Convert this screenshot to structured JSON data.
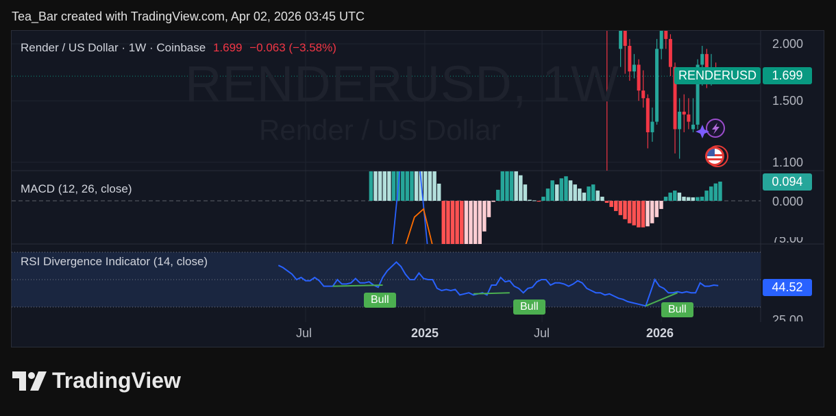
{
  "header": {
    "title": "Tea_Bar created with TradingView.com, Apr 02, 2026 03:45 UTC"
  },
  "legend": {
    "symbol": "Render / US Dollar · 1W · Coinbase",
    "price": "1.699",
    "change": "−0.063 (−3.58%)",
    "macd": "MACD (12, 26, close)",
    "rsi": "RSI Divergence Indicator (14, close)"
  },
  "watermark": {
    "ticker": "RENDERUSD, 1W",
    "name": "Render / US Dollar"
  },
  "price_axis": {
    "labels": [
      "2.000",
      "1.500",
      "1.100"
    ],
    "symbol_tag": "RENDERUSD",
    "price_tag": "1.699"
  },
  "macd_axis": {
    "value_tag": "0.094",
    "zero": "0.000"
  },
  "rsi_axis": {
    "top": "75.00",
    "bottom": "25.00",
    "value_tag": "44.52"
  },
  "time_axis": [
    "Jul",
    "2025",
    "Jul",
    "2026"
  ],
  "logo": {
    "text": "TradingView"
  },
  "colors": {
    "up": "#26a69a",
    "down": "#f23645",
    "rsi": "#2962ff",
    "macd": "#2962ff",
    "signal": "#ff6d00",
    "bull": "#4caf50",
    "hist_up_grow": "#26a69a",
    "hist_up_fall": "#b2dfdb",
    "hist_dn_grow": "#ff5252",
    "hist_dn_fall": "#ffcdd2"
  },
  "icons": [
    "lightning-icon",
    "sparkle-icon",
    "us-flag-icon"
  ],
  "chart_data": [
    {
      "type": "candlestick",
      "title": "Render / US Dollar · 1W · Coinbase",
      "scale": "log",
      "ylim": [
        1.05,
        2.14
      ],
      "candles": [
        {
          "date": "2025-10-06",
          "o": 2.25,
          "h": 2.3,
          "l": 1.05,
          "c": 2.2
        },
        {
          "date": "2025-10-27",
          "o": 1.95,
          "h": 2.3,
          "l": 1.78,
          "c": 2.2
        },
        {
          "date": "2025-11-03",
          "o": 2.2,
          "h": 2.3,
          "l": 1.72,
          "c": 1.98
        },
        {
          "date": "2025-11-10",
          "o": 1.98,
          "h": 2.05,
          "l": 1.66,
          "c": 1.74
        },
        {
          "date": "2025-11-17",
          "o": 1.74,
          "h": 1.9,
          "l": 1.68,
          "c": 1.8
        },
        {
          "date": "2025-11-24",
          "o": 1.8,
          "h": 1.85,
          "l": 1.5,
          "c": 1.58
        },
        {
          "date": "2025-12-01",
          "o": 1.58,
          "h": 1.75,
          "l": 1.45,
          "c": 1.52
        },
        {
          "date": "2025-12-08",
          "o": 1.52,
          "h": 1.55,
          "l": 1.18,
          "c": 1.28
        },
        {
          "date": "2025-12-15",
          "o": 1.28,
          "h": 1.45,
          "l": 1.22,
          "c": 1.35
        },
        {
          "date": "2025-12-22",
          "o": 1.35,
          "h": 2.05,
          "l": 1.33,
          "c": 1.95
        },
        {
          "date": "2025-12-29",
          "o": 1.95,
          "h": 2.2,
          "l": 1.85,
          "c": 2.15
        },
        {
          "date": "2026-01-05",
          "o": 2.15,
          "h": 2.2,
          "l": 1.95,
          "c": 2.05
        },
        {
          "date": "2026-01-12",
          "o": 2.05,
          "h": 2.1,
          "l": 1.7,
          "c": 1.78
        },
        {
          "date": "2026-01-19",
          "o": 1.78,
          "h": 1.82,
          "l": 1.15,
          "c": 1.3
        },
        {
          "date": "2026-01-26",
          "o": 1.3,
          "h": 1.52,
          "l": 1.12,
          "c": 1.42
        },
        {
          "date": "2026-02-02",
          "o": 1.42,
          "h": 1.55,
          "l": 1.28,
          "c": 1.4
        },
        {
          "date": "2026-02-09",
          "o": 1.4,
          "h": 1.52,
          "l": 1.3,
          "c": 1.35
        },
        {
          "date": "2026-02-16",
          "o": 1.3,
          "h": 1.52,
          "l": 1.28,
          "c": 1.33
        },
        {
          "date": "2026-02-23",
          "o": 1.33,
          "h": 1.85,
          "l": 1.3,
          "c": 1.8
        },
        {
          "date": "2026-03-02",
          "o": 1.8,
          "h": 1.98,
          "l": 1.62,
          "c": 1.9
        },
        {
          "date": "2026-03-09",
          "o": 1.9,
          "h": 1.95,
          "l": 1.6,
          "c": 1.68
        },
        {
          "date": "2026-03-16",
          "o": 1.68,
          "h": 1.9,
          "l": 1.62,
          "c": 1.762
        },
        {
          "date": "2026-03-23",
          "o": 1.762,
          "h": 1.82,
          "l": 1.64,
          "c": 1.699
        }
      ],
      "last_price": 1.699
    },
    {
      "type": "bar",
      "title": "MACD (12, 26, close)",
      "start_week": "2024-10-07",
      "ylim": [
        -0.21,
        0.148
      ],
      "histogram": [
        0.3,
        0.28,
        0.26,
        0.24,
        0.22,
        0.25,
        0.3,
        0.36,
        0.42,
        0.48,
        0.45,
        0.4,
        0.32,
        0.24,
        0.16,
        0.084,
        -0.25,
        -0.35,
        -0.42,
        -0.46,
        -0.48,
        -0.44,
        -0.38,
        -0.3,
        -0.22,
        -0.15,
        -0.08,
        -0.005,
        0.054,
        0.16,
        0.2,
        0.22,
        0.19,
        0.125,
        0.08,
        0.005,
        0.002,
        -0.004,
        0.02,
        0.06,
        0.1,
        0.08,
        0.11,
        0.12,
        0.1,
        0.08,
        0.06,
        0.04,
        0.07,
        0.08,
        0.05,
        0.02,
        -0.01,
        -0.03,
        -0.05,
        -0.07,
        -0.09,
        -0.11,
        -0.12,
        -0.13,
        -0.13,
        -0.125,
        -0.11,
        -0.08,
        -0.04,
        0.02,
        0.04,
        0.05,
        0.04,
        0.02,
        0.018,
        0.017,
        0.018,
        0.02,
        0.05,
        0.07,
        0.085,
        0.094
      ],
      "macd_line": [
        {
          "date": "2024-11-11",
          "v": -0.25
        },
        {
          "date": "2024-11-25",
          "v": 0.2
        },
        {
          "date": "2024-12-23",
          "v": 0.2
        },
        {
          "date": "2025-01-06",
          "v": -0.25
        }
      ],
      "signal_line": [
        {
          "date": "2024-12-02",
          "v": -0.22
        },
        {
          "date": "2024-12-16",
          "v": -0.08
        },
        {
          "date": "2024-12-30",
          "v": -0.04
        },
        {
          "date": "2025-01-13",
          "v": -0.22
        }
      ],
      "zero_line": 0,
      "last_value": 0.094
    },
    {
      "type": "line",
      "title": "RSI Divergence Indicator (14, close)",
      "start_week": "2024-05-20",
      "ylim": [
        20,
        78
      ],
      "band": [
        25,
        75
      ],
      "levels": [
        25,
        50,
        75
      ],
      "values": [
        63,
        61,
        58,
        55,
        50,
        52,
        49,
        49,
        52,
        49,
        44,
        44,
        44,
        50,
        46,
        46,
        47,
        51,
        47,
        47,
        48,
        45,
        43,
        52,
        58,
        62,
        66,
        62,
        55,
        50,
        50,
        56,
        51,
        50,
        50,
        42,
        40,
        41,
        40,
        41,
        36,
        37,
        38,
        36,
        37,
        38,
        36,
        45,
        45,
        52,
        48,
        49,
        44,
        42,
        38,
        42,
        43,
        48,
        50,
        50,
        45,
        47,
        47,
        46,
        44,
        46,
        49,
        47,
        42,
        40,
        38,
        38,
        36,
        37,
        35,
        33,
        32,
        30,
        29,
        28,
        27,
        26,
        38,
        50,
        44,
        42,
        38,
        38,
        39,
        38,
        39,
        38,
        38,
        47,
        44,
        44,
        45,
        44.52
      ],
      "divergences": [
        {
          "label": "Bull",
          "from": {
            "date": "2024-08-12",
            "v": 44
          },
          "to": {
            "date": "2024-10-28",
            "v": 45
          }
        },
        {
          "label": "Bull",
          "from": {
            "date": "2025-03-17",
            "v": 37
          },
          "to": {
            "date": "2025-05-12",
            "v": 38
          }
        },
        {
          "label": "Bull",
          "from": {
            "date": "2025-12-08",
            "v": 26
          },
          "to": {
            "date": "2026-01-26",
            "v": 38
          }
        }
      ],
      "last_value": 44.52,
      "xticks": [
        "Jul",
        "2025",
        "Jul",
        "2026"
      ]
    }
  ]
}
